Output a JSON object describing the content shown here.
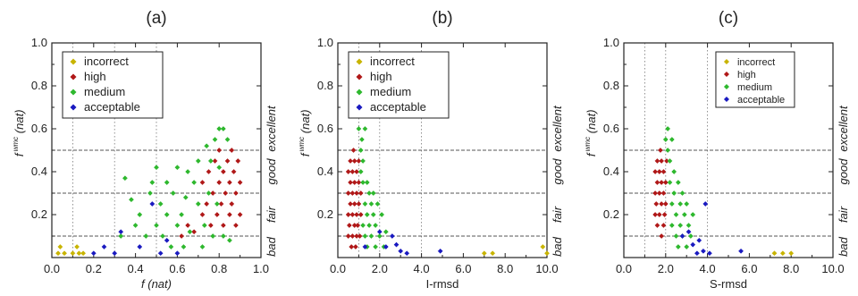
{
  "classes": [
    {
      "key": "incorrect",
      "color": "#c8b400"
    },
    {
      "key": "high",
      "color": "#b01818"
    },
    {
      "key": "medium",
      "color": "#2eb82e"
    },
    {
      "key": "acceptable",
      "color": "#1a1ac0"
    }
  ],
  "zones": [
    "bad",
    "fair",
    "good",
    "excellent"
  ],
  "y_thresholds": [
    0.1,
    0.3,
    0.5
  ],
  "chart_data": [
    {
      "type": "scatter",
      "title": "(a)",
      "xlabel": "f (nat)",
      "ylabel": {
        "main": "f",
        "sup": "wmc",
        "suffix": "(nat)"
      },
      "xlim": [
        0.0,
        1.0
      ],
      "ylim": [
        0.0,
        1.0
      ],
      "x_ticks": [
        "0.0",
        "0.2",
        "0.4",
        "0.6",
        "0.8",
        "1.0"
      ],
      "x_tick_values": [
        0.0,
        0.2,
        0.4,
        0.6,
        0.8,
        1.0
      ],
      "y_ticks": [
        "0.2",
        "0.4",
        "0.6",
        "0.8",
        "1.0"
      ],
      "y_tick_values": [
        0.2,
        0.4,
        0.6,
        0.8,
        1.0
      ],
      "x_dotted": [
        0.1,
        0.3,
        0.5
      ],
      "legend": {
        "position": "top-left",
        "size": "normal",
        "entries": [
          "incorrect",
          "high",
          "medium",
          "acceptable"
        ]
      },
      "series": [
        {
          "name": "incorrect",
          "points": [
            [
              0.03,
              0.02
            ],
            [
              0.04,
              0.05
            ],
            [
              0.06,
              0.02
            ],
            [
              0.1,
              0.02
            ],
            [
              0.12,
              0.05
            ],
            [
              0.13,
              0.02
            ],
            [
              0.15,
              0.02
            ]
          ]
        },
        {
          "name": "high",
          "points": [
            [
              0.62,
              0.1
            ],
            [
              0.65,
              0.15
            ],
            [
              0.68,
              0.12
            ],
            [
              0.72,
              0.2
            ],
            [
              0.72,
              0.35
            ],
            [
              0.74,
              0.25
            ],
            [
              0.75,
              0.4
            ],
            [
              0.76,
              0.15
            ],
            [
              0.77,
              0.3
            ],
            [
              0.78,
              0.45
            ],
            [
              0.79,
              0.2
            ],
            [
              0.8,
              0.35
            ],
            [
              0.8,
              0.5
            ],
            [
              0.81,
              0.25
            ],
            [
              0.82,
              0.4
            ],
            [
              0.82,
              0.15
            ],
            [
              0.83,
              0.3
            ],
            [
              0.84,
              0.45
            ],
            [
              0.85,
              0.2
            ],
            [
              0.85,
              0.35
            ],
            [
              0.86,
              0.5
            ],
            [
              0.86,
              0.25
            ],
            [
              0.87,
              0.4
            ],
            [
              0.88,
              0.3
            ],
            [
              0.88,
              0.15
            ],
            [
              0.89,
              0.45
            ],
            [
              0.9,
              0.2
            ],
            [
              0.9,
              0.35
            ]
          ]
        },
        {
          "name": "medium",
          "points": [
            [
              0.33,
              0.1
            ],
            [
              0.35,
              0.37
            ],
            [
              0.38,
              0.27
            ],
            [
              0.4,
              0.15
            ],
            [
              0.42,
              0.2
            ],
            [
              0.45,
              0.1
            ],
            [
              0.47,
              0.3
            ],
            [
              0.48,
              0.35
            ],
            [
              0.5,
              0.15
            ],
            [
              0.5,
              0.42
            ],
            [
              0.52,
              0.25
            ],
            [
              0.53,
              0.1
            ],
            [
              0.55,
              0.2
            ],
            [
              0.55,
              0.35
            ],
            [
              0.57,
              0.05
            ],
            [
              0.58,
              0.3
            ],
            [
              0.6,
              0.15
            ],
            [
              0.6,
              0.42
            ],
            [
              0.62,
              0.2
            ],
            [
              0.63,
              0.05
            ],
            [
              0.64,
              0.28
            ],
            [
              0.65,
              0.4
            ],
            [
              0.66,
              0.12
            ],
            [
              0.68,
              0.35
            ],
            [
              0.7,
              0.25
            ],
            [
              0.7,
              0.45
            ],
            [
              0.72,
              0.05
            ],
            [
              0.73,
              0.15
            ],
            [
              0.74,
              0.52
            ],
            [
              0.75,
              0.3
            ],
            [
              0.76,
              0.45
            ],
            [
              0.77,
              0.1
            ],
            [
              0.78,
              0.55
            ],
            [
              0.79,
              0.25
            ],
            [
              0.8,
              0.6
            ],
            [
              0.8,
              0.42
            ],
            [
              0.82,
              0.6
            ],
            [
              0.82,
              0.1
            ],
            [
              0.84,
              0.55
            ],
            [
              0.85,
              0.08
            ]
          ]
        },
        {
          "name": "acceptable",
          "points": [
            [
              0.2,
              0.02
            ],
            [
              0.25,
              0.05
            ],
            [
              0.3,
              0.02
            ],
            [
              0.33,
              0.12
            ],
            [
              0.42,
              0.05
            ],
            [
              0.48,
              0.25
            ],
            [
              0.52,
              0.02
            ],
            [
              0.55,
              0.08
            ],
            [
              0.6,
              0.02
            ]
          ]
        }
      ]
    },
    {
      "type": "scatter",
      "title": "(b)",
      "xlabel": "I-rmsd",
      "ylabel": {
        "main": "f",
        "sup": "wmc",
        "suffix": "(nat)"
      },
      "xlim": [
        0.0,
        10.0
      ],
      "ylim": [
        0.0,
        1.0
      ],
      "x_ticks": [
        "0.0",
        "2.0",
        "4.0",
        "6.0",
        "8.0",
        "10.0"
      ],
      "x_tick_values": [
        0,
        2,
        4,
        6,
        8,
        10
      ],
      "y_ticks": [
        "0.2",
        "0.4",
        "0.6",
        "0.8",
        "1.0"
      ],
      "y_tick_values": [
        0.2,
        0.4,
        0.6,
        0.8,
        1.0
      ],
      "x_dotted": [
        1.0,
        2.0,
        4.0
      ],
      "legend": {
        "position": "top-left",
        "size": "normal",
        "entries": [
          "incorrect",
          "high",
          "medium",
          "acceptable"
        ]
      },
      "series": [
        {
          "name": "incorrect",
          "points": [
            [
              7.0,
              0.02
            ],
            [
              7.4,
              0.02
            ],
            [
              9.8,
              0.05
            ],
            [
              10.0,
              0.02
            ]
          ]
        },
        {
          "name": "high",
          "points": [
            [
              0.5,
              0.1
            ],
            [
              0.5,
              0.2
            ],
            [
              0.5,
              0.3
            ],
            [
              0.5,
              0.4
            ],
            [
              0.55,
              0.15
            ],
            [
              0.6,
              0.25
            ],
            [
              0.6,
              0.35
            ],
            [
              0.6,
              0.45
            ],
            [
              0.65,
              0.05
            ],
            [
              0.7,
              0.1
            ],
            [
              0.7,
              0.2
            ],
            [
              0.7,
              0.3
            ],
            [
              0.7,
              0.4
            ],
            [
              0.75,
              0.5
            ],
            [
              0.8,
              0.15
            ],
            [
              0.8,
              0.25
            ],
            [
              0.8,
              0.35
            ],
            [
              0.8,
              0.45
            ],
            [
              0.85,
              0.05
            ],
            [
              0.9,
              0.1
            ],
            [
              0.9,
              0.2
            ],
            [
              0.9,
              0.3
            ],
            [
              0.9,
              0.4
            ],
            [
              0.95,
              0.15
            ],
            [
              1.0,
              0.25
            ],
            [
              1.0,
              0.35
            ],
            [
              1.0,
              0.45
            ],
            [
              1.05,
              0.1
            ],
            [
              1.1,
              0.2
            ],
            [
              1.1,
              0.3
            ]
          ]
        },
        {
          "name": "medium",
          "points": [
            [
              1.0,
              0.6
            ],
            [
              1.1,
              0.5
            ],
            [
              1.1,
              0.4
            ],
            [
              1.15,
              0.55
            ],
            [
              1.2,
              0.45
            ],
            [
              1.2,
              0.35
            ],
            [
              1.2,
              0.15
            ],
            [
              1.3,
              0.25
            ],
            [
              1.3,
              0.1
            ],
            [
              1.3,
              0.6
            ],
            [
              1.4,
              0.35
            ],
            [
              1.4,
              0.2
            ],
            [
              1.4,
              0.05
            ],
            [
              1.5,
              0.3
            ],
            [
              1.5,
              0.15
            ],
            [
              1.6,
              0.25
            ],
            [
              1.6,
              0.1
            ],
            [
              1.7,
              0.2
            ],
            [
              1.7,
              0.3
            ],
            [
              1.8,
              0.15
            ],
            [
              1.8,
              0.05
            ],
            [
              1.9,
              0.25
            ],
            [
              2.0,
              0.1
            ],
            [
              2.1,
              0.2
            ],
            [
              2.2,
              0.05
            ],
            [
              2.3,
              0.12
            ]
          ]
        },
        {
          "name": "acceptable",
          "points": [
            [
              1.3,
              0.05
            ],
            [
              2.0,
              0.12
            ],
            [
              2.3,
              0.05
            ],
            [
              2.6,
              0.1
            ],
            [
              2.8,
              0.06
            ],
            [
              3.0,
              0.03
            ],
            [
              3.3,
              0.02
            ],
            [
              4.9,
              0.03
            ]
          ]
        }
      ]
    },
    {
      "type": "scatter",
      "title": "(c)",
      "xlabel": "S-rmsd",
      "ylabel": {
        "main": "f",
        "sup": "wmc",
        "suffix": "(nat)"
      },
      "xlim": [
        0.0,
        10.0
      ],
      "ylim": [
        0.0,
        1.0
      ],
      "x_ticks": [
        "0.0",
        "2.0",
        "4.0",
        "6.0",
        "8.0",
        "10.0"
      ],
      "x_tick_values": [
        0,
        2,
        4,
        6,
        8,
        10
      ],
      "y_ticks": [
        "0.2",
        "0.4",
        "0.6",
        "0.8",
        "1.0"
      ],
      "y_tick_values": [
        0.2,
        0.4,
        0.6,
        0.8,
        1.0
      ],
      "x_dotted": [
        1.0,
        2.0,
        4.0
      ],
      "legend": {
        "position": "top-center",
        "size": "small",
        "entries": [
          "incorrect",
          "high",
          "medium",
          "acceptable"
        ]
      },
      "series": [
        {
          "name": "incorrect",
          "points": [
            [
              7.2,
              0.02
            ],
            [
              7.6,
              0.02
            ],
            [
              8.0,
              0.02
            ]
          ]
        },
        {
          "name": "high",
          "points": [
            [
              1.5,
              0.2
            ],
            [
              1.5,
              0.3
            ],
            [
              1.5,
              0.4
            ],
            [
              1.55,
              0.25
            ],
            [
              1.6,
              0.15
            ],
            [
              1.6,
              0.35
            ],
            [
              1.6,
              0.45
            ],
            [
              1.7,
              0.2
            ],
            [
              1.7,
              0.3
            ],
            [
              1.7,
              0.4
            ],
            [
              1.75,
              0.5
            ],
            [
              1.8,
              0.1
            ],
            [
              1.8,
              0.25
            ],
            [
              1.8,
              0.35
            ],
            [
              1.8,
              0.45
            ],
            [
              1.9,
              0.15
            ],
            [
              1.9,
              0.3
            ],
            [
              1.9,
              0.4
            ],
            [
              1.95,
              0.2
            ],
            [
              2.0,
              0.35
            ],
            [
              2.0,
              0.25
            ],
            [
              2.05,
              0.45
            ]
          ]
        },
        {
          "name": "medium",
          "points": [
            [
              2.0,
              0.55
            ],
            [
              2.1,
              0.6
            ],
            [
              2.1,
              0.5
            ],
            [
              2.2,
              0.45
            ],
            [
              2.2,
              0.35
            ],
            [
              2.3,
              0.55
            ],
            [
              2.3,
              0.25
            ],
            [
              2.3,
              0.15
            ],
            [
              2.4,
              0.4
            ],
            [
              2.4,
              0.3
            ],
            [
              2.5,
              0.2
            ],
            [
              2.5,
              0.1
            ],
            [
              2.6,
              0.35
            ],
            [
              2.6,
              0.05
            ],
            [
              2.7,
              0.25
            ],
            [
              2.7,
              0.15
            ],
            [
              2.8,
              0.3
            ],
            [
              2.8,
              0.1
            ],
            [
              2.9,
              0.2
            ],
            [
              3.0,
              0.05
            ],
            [
              3.0,
              0.25
            ],
            [
              3.1,
              0.15
            ],
            [
              3.2,
              0.1
            ],
            [
              3.3,
              0.2
            ]
          ]
        },
        {
          "name": "acceptable",
          "points": [
            [
              2.8,
              0.1
            ],
            [
              3.1,
              0.12
            ],
            [
              3.3,
              0.06
            ],
            [
              3.5,
              0.02
            ],
            [
              3.6,
              0.08
            ],
            [
              3.8,
              0.03
            ],
            [
              3.9,
              0.25
            ],
            [
              4.1,
              0.02
            ],
            [
              5.6,
              0.03
            ]
          ]
        }
      ]
    }
  ]
}
